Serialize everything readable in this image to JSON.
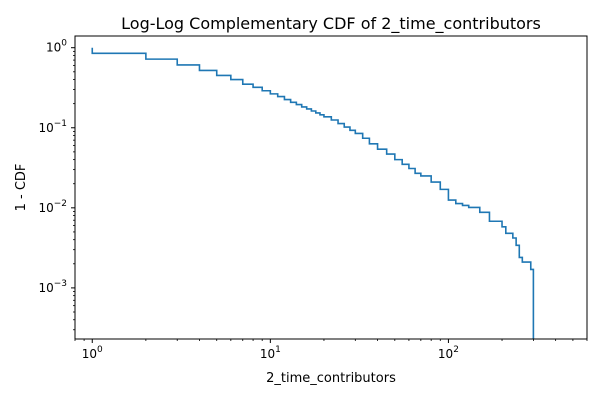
{
  "chart_data": {
    "type": "line",
    "title": "Log-Log Complementary CDF of 2_time_contributors",
    "xlabel": "2_time_contributors",
    "ylabel": "1 - CDF",
    "xscale": "log",
    "yscale": "log",
    "xlim": [
      0.8,
      600
    ],
    "ylim": [
      0.00023,
      1.4
    ],
    "grid": false,
    "legend": "none",
    "color": "#1f77b4",
    "x_ticks": [
      {
        "value": 1,
        "label_base": "10",
        "label_exp": "0"
      },
      {
        "value": 10,
        "label_base": "10",
        "label_exp": "1"
      },
      {
        "value": 100,
        "label_base": "10",
        "label_exp": "2"
      }
    ],
    "y_ticks": [
      {
        "value": 0.001,
        "label_base": "10",
        "label_exp": "−3"
      },
      {
        "value": 0.01,
        "label_base": "10",
        "label_exp": "−2"
      },
      {
        "value": 0.1,
        "label_base": "10",
        "label_exp": "−1"
      },
      {
        "value": 1,
        "label_base": "10",
        "label_exp": "0"
      }
    ],
    "series": [
      {
        "step": "post",
        "x": [
          1,
          1,
          2,
          3,
          4,
          5,
          6,
          7,
          8,
          9,
          10,
          11,
          12,
          13,
          14,
          15,
          16,
          17,
          18,
          19,
          20,
          22,
          24,
          26,
          28,
          30,
          33,
          36,
          40,
          45,
          50,
          55,
          60,
          65,
          70,
          80,
          90,
          100,
          110,
          120,
          130,
          150,
          170,
          200,
          210,
          230,
          240,
          250,
          260,
          290,
          300,
          300
        ],
        "y": [
          1.0,
          0.85,
          0.72,
          0.61,
          0.52,
          0.45,
          0.4,
          0.35,
          0.32,
          0.29,
          0.265,
          0.245,
          0.225,
          0.208,
          0.195,
          0.182,
          0.172,
          0.162,
          0.153,
          0.145,
          0.137,
          0.125,
          0.113,
          0.102,
          0.093,
          0.085,
          0.074,
          0.063,
          0.054,
          0.047,
          0.04,
          0.035,
          0.031,
          0.027,
          0.025,
          0.021,
          0.017,
          0.0125,
          0.0113,
          0.0107,
          0.0101,
          0.0088,
          0.0068,
          0.0058,
          0.0048,
          0.0042,
          0.0034,
          0.0024,
          0.0021,
          0.0017,
          0.0017,
          0.00023
        ]
      }
    ]
  }
}
